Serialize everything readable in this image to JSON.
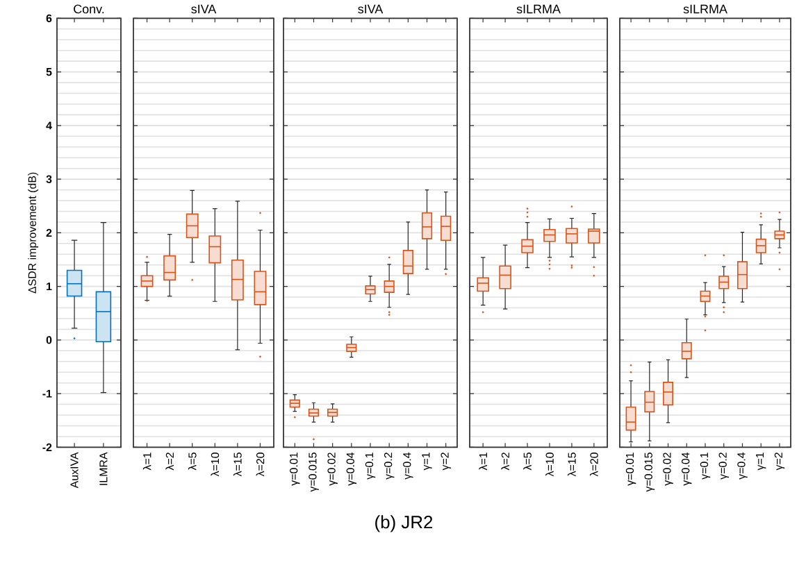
{
  "chart_data": [
    {
      "type": "box",
      "title": "Conv.",
      "ylabel": "ΔSDR improvement (dB)",
      "categories": [
        "AuxIVA",
        "ILMRA"
      ],
      "color": "#0072bd",
      "ylim": [
        -2,
        6
      ],
      "yticks": [
        -2,
        -1,
        0,
        1,
        2,
        3,
        4,
        5,
        6
      ],
      "grid": "y",
      "boxes": [
        {
          "low": 0.22,
          "q1": 0.82,
          "median": 1.05,
          "q3": 1.3,
          "high": 1.86,
          "outliers": [
            0.03
          ]
        },
        {
          "low": -0.98,
          "q1": -0.03,
          "median": 0.53,
          "q3": 0.9,
          "high": 2.19
        }
      ]
    },
    {
      "type": "box",
      "title": "sIVA",
      "categories": [
        "λ=1",
        "λ=2",
        "λ=5",
        "λ=10",
        "λ=15",
        "λ=20"
      ],
      "color": "#d95319",
      "ylim": [
        -2,
        6
      ],
      "yticks": [
        -2,
        -1,
        0,
        1,
        2,
        3,
        4,
        5,
        6
      ],
      "grid": "y",
      "tick_labels": "x",
      "boxes": [
        {
          "low": 0.74,
          "q1": 1.0,
          "median": 1.1,
          "q3": 1.2,
          "high": 1.45,
          "outliers": [
            1.55,
            0.73
          ]
        },
        {
          "low": 0.82,
          "q1": 1.12,
          "median": 1.26,
          "q3": 1.57,
          "high": 1.97
        },
        {
          "low": 1.45,
          "q1": 1.91,
          "median": 2.13,
          "q3": 2.35,
          "high": 2.79,
          "outliers": [
            1.12
          ]
        },
        {
          "low": 0.72,
          "q1": 1.44,
          "median": 1.74,
          "q3": 1.94,
          "high": 2.45
        },
        {
          "low": -0.18,
          "q1": 0.75,
          "median": 1.13,
          "q3": 1.49,
          "high": 2.59
        },
        {
          "low": -0.06,
          "q1": 0.66,
          "median": 0.9,
          "q3": 1.28,
          "high": 2.05,
          "outliers": [
            2.37,
            -0.31
          ]
        }
      ]
    },
    {
      "type": "box",
      "title": "sIVA",
      "categories": [
        "γ=0.01",
        "γ=0.015",
        "γ=0.02",
        "γ=0.04",
        "γ=0.1",
        "γ=0.2",
        "γ=0.4",
        "γ=1",
        "γ=2"
      ],
      "color": "#d95319",
      "ylim": [
        -2,
        6
      ],
      "yticks": [
        -2,
        -1,
        0,
        1,
        2,
        3,
        4,
        5,
        6
      ],
      "grid": "y",
      "tick_labels": "x",
      "annotations": [
        "(b) JR2"
      ],
      "boxes": [
        {
          "low": -1.33,
          "q1": -1.25,
          "median": -1.18,
          "q3": -1.12,
          "high": -1.02,
          "outliers": [
            -1.44
          ]
        },
        {
          "low": -1.53,
          "q1": -1.42,
          "median": -1.36,
          "q3": -1.29,
          "high": -1.17,
          "outliers": [
            -1.85
          ]
        },
        {
          "low": -1.53,
          "q1": -1.42,
          "median": -1.35,
          "q3": -1.29,
          "high": -1.19
        },
        {
          "low": -0.32,
          "q1": -0.21,
          "median": -0.14,
          "q3": -0.08,
          "high": 0.06
        },
        {
          "low": 0.72,
          "q1": 0.86,
          "median": 0.94,
          "q3": 1.01,
          "high": 1.19
        },
        {
          "low": 0.61,
          "q1": 0.89,
          "median": 1.0,
          "q3": 1.1,
          "high": 1.41,
          "outliers": [
            1.54,
            0.52,
            0.47
          ]
        },
        {
          "low": 0.85,
          "q1": 1.24,
          "median": 1.38,
          "q3": 1.67,
          "high": 2.2
        },
        {
          "low": 1.32,
          "q1": 1.89,
          "median": 2.11,
          "q3": 2.37,
          "high": 2.8
        },
        {
          "low": 1.32,
          "q1": 1.86,
          "median": 2.12,
          "q3": 2.31,
          "high": 2.76,
          "outliers": [
            1.23
          ]
        }
      ]
    },
    {
      "type": "box",
      "title": "sILRMA",
      "categories": [
        "λ=1",
        "λ=2",
        "λ=5",
        "λ=10",
        "λ=15",
        "λ=20"
      ],
      "color": "#d95319",
      "ylim": [
        -2,
        6
      ],
      "yticks": [
        -2,
        -1,
        0,
        1,
        2,
        3,
        4,
        5,
        6
      ],
      "grid": "y",
      "tick_labels": "x",
      "boxes": [
        {
          "low": 0.65,
          "q1": 0.91,
          "median": 1.06,
          "q3": 1.16,
          "high": 1.54,
          "outliers": [
            0.52
          ]
        },
        {
          "low": 0.58,
          "q1": 0.96,
          "median": 1.21,
          "q3": 1.38,
          "high": 1.77
        },
        {
          "low": 1.35,
          "q1": 1.63,
          "median": 1.75,
          "q3": 1.87,
          "high": 2.19,
          "outliers": [
            2.45,
            2.38,
            2.3
          ]
        },
        {
          "low": 1.54,
          "q1": 1.84,
          "median": 1.96,
          "q3": 2.06,
          "high": 2.26,
          "outliers": [
            1.48,
            1.41,
            1.33
          ]
        },
        {
          "low": 1.55,
          "q1": 1.81,
          "median": 1.98,
          "q3": 2.08,
          "high": 2.27,
          "outliers": [
            2.49,
            1.39,
            1.35
          ]
        },
        {
          "low": 1.54,
          "q1": 1.81,
          "median": 2.03,
          "q3": 2.07,
          "high": 2.36,
          "outliers": [
            1.36,
            1.2
          ]
        }
      ]
    },
    {
      "type": "box",
      "title": "sILRMA",
      "categories": [
        "γ=0.01",
        "γ=0.015",
        "γ=0.02",
        "γ=0.04",
        "γ=0.1",
        "γ=0.2",
        "γ=0.4",
        "γ=1",
        "γ=2"
      ],
      "color": "#d95319",
      "ylim": [
        -2,
        6
      ],
      "yticks": [
        -2,
        -1,
        0,
        1,
        2,
        3,
        4,
        5,
        6
      ],
      "grid": "y",
      "tick_labels": "x",
      "boxes": [
        {
          "low": -1.9,
          "q1": -1.68,
          "median": -1.53,
          "q3": -1.25,
          "high": -0.76,
          "outliers": [
            -0.47,
            -0.6
          ]
        },
        {
          "low": -1.88,
          "q1": -1.34,
          "median": -1.16,
          "q3": -0.96,
          "high": -0.41
        },
        {
          "low": -1.54,
          "q1": -1.21,
          "median": -0.97,
          "q3": -0.79,
          "high": -0.37
        },
        {
          "low": -0.7,
          "q1": -0.35,
          "median": -0.21,
          "q3": -0.05,
          "high": 0.39
        },
        {
          "low": 0.47,
          "q1": 0.72,
          "median": 0.82,
          "q3": 0.91,
          "high": 1.07,
          "outliers": [
            1.58,
            0.18,
            0.44
          ]
        },
        {
          "low": 0.7,
          "q1": 0.96,
          "median": 1.08,
          "q3": 1.19,
          "high": 1.37,
          "outliers": [
            1.58,
            0.61,
            0.52
          ]
        },
        {
          "low": 0.71,
          "q1": 0.96,
          "median": 1.22,
          "q3": 1.46,
          "high": 2.01
        },
        {
          "low": 1.42,
          "q1": 1.63,
          "median": 1.76,
          "q3": 1.88,
          "high": 2.15,
          "outliers": [
            2.36,
            2.3
          ]
        },
        {
          "low": 1.72,
          "q1": 1.89,
          "median": 1.96,
          "q3": 2.03,
          "high": 2.25,
          "outliers": [
            2.38,
            1.63,
            1.32
          ]
        }
      ]
    }
  ]
}
